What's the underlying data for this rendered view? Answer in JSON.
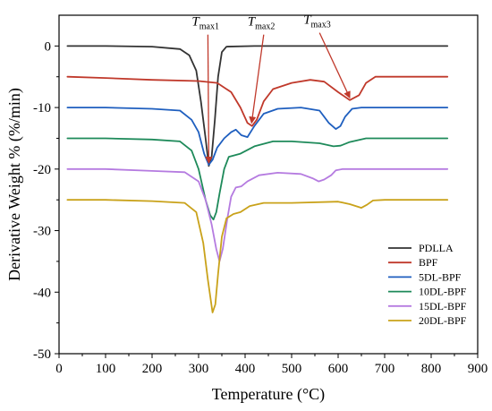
{
  "chart_data": {
    "type": "line",
    "xlabel": "Temperature (°C)",
    "ylabel": "Derivative Weight % (%/min)",
    "xlim": [
      0,
      900
    ],
    "ylim": [
      -50,
      5
    ],
    "xticks": [
      0,
      100,
      200,
      300,
      400,
      500,
      600,
      700,
      800,
      900
    ],
    "yticks": [
      0,
      -10,
      -20,
      -30,
      -40,
      -50
    ],
    "grid": false,
    "legend_position": "bottom-right",
    "series": [
      {
        "name": "PDLLA",
        "color": "#333333",
        "points": [
          [
            18,
            0
          ],
          [
            100,
            0
          ],
          [
            200,
            -0.1
          ],
          [
            260,
            -0.5
          ],
          [
            280,
            -1.5
          ],
          [
            295,
            -4
          ],
          [
            305,
            -9
          ],
          [
            315,
            -15
          ],
          [
            322,
            -19.5
          ],
          [
            328,
            -18
          ],
          [
            335,
            -12
          ],
          [
            342,
            -5
          ],
          [
            350,
            -1
          ],
          [
            360,
            -0.1
          ],
          [
            420,
            0
          ],
          [
            600,
            0
          ],
          [
            835,
            0
          ]
        ]
      },
      {
        "name": "BPF",
        "color": "#c0392b",
        "points": [
          [
            18,
            -5
          ],
          [
            100,
            -5.2
          ],
          [
            200,
            -5.5
          ],
          [
            300,
            -5.7
          ],
          [
            340,
            -6
          ],
          [
            370,
            -7.5
          ],
          [
            390,
            -10
          ],
          [
            405,
            -12.5
          ],
          [
            415,
            -13
          ],
          [
            425,
            -12
          ],
          [
            440,
            -9
          ],
          [
            460,
            -7
          ],
          [
            500,
            -6
          ],
          [
            540,
            -5.5
          ],
          [
            570,
            -5.8
          ],
          [
            600,
            -7.5
          ],
          [
            625,
            -8.8
          ],
          [
            645,
            -8
          ],
          [
            660,
            -6
          ],
          [
            680,
            -5
          ],
          [
            835,
            -5
          ]
        ]
      },
      {
        "name": "5DL-BPF",
        "color": "#1f5fbf",
        "points": [
          [
            18,
            -10
          ],
          [
            100,
            -10
          ],
          [
            200,
            -10.2
          ],
          [
            260,
            -10.5
          ],
          [
            285,
            -12
          ],
          [
            300,
            -14
          ],
          [
            312,
            -17.5
          ],
          [
            322,
            -19.3
          ],
          [
            330,
            -18.5
          ],
          [
            340,
            -16.5
          ],
          [
            355,
            -15
          ],
          [
            370,
            -14
          ],
          [
            380,
            -13.6
          ],
          [
            392,
            -14.5
          ],
          [
            405,
            -14.8
          ],
          [
            420,
            -13
          ],
          [
            440,
            -11
          ],
          [
            470,
            -10.2
          ],
          [
            520,
            -10
          ],
          [
            560,
            -10.5
          ],
          [
            580,
            -12.5
          ],
          [
            595,
            -13.5
          ],
          [
            605,
            -13
          ],
          [
            615,
            -11.5
          ],
          [
            630,
            -10.2
          ],
          [
            650,
            -10
          ],
          [
            835,
            -10
          ]
        ]
      },
      {
        "name": "10DL-BPF",
        "color": "#1e8a5a",
        "points": [
          [
            18,
            -15
          ],
          [
            100,
            -15
          ],
          [
            200,
            -15.2
          ],
          [
            260,
            -15.5
          ],
          [
            285,
            -17
          ],
          [
            300,
            -20
          ],
          [
            315,
            -25
          ],
          [
            325,
            -27.5
          ],
          [
            332,
            -28.2
          ],
          [
            338,
            -27
          ],
          [
            345,
            -24
          ],
          [
            355,
            -20
          ],
          [
            365,
            -18
          ],
          [
            375,
            -17.8
          ],
          [
            390,
            -17.5
          ],
          [
            420,
            -16.3
          ],
          [
            460,
            -15.5
          ],
          [
            500,
            -15.5
          ],
          [
            560,
            -15.8
          ],
          [
            590,
            -16.3
          ],
          [
            605,
            -16.2
          ],
          [
            625,
            -15.6
          ],
          [
            660,
            -15
          ],
          [
            835,
            -15
          ]
        ]
      },
      {
        "name": "15DL-BPF",
        "color": "#b57be0",
        "points": [
          [
            18,
            -20
          ],
          [
            100,
            -20
          ],
          [
            200,
            -20.3
          ],
          [
            270,
            -20.5
          ],
          [
            300,
            -22
          ],
          [
            315,
            -25
          ],
          [
            328,
            -29
          ],
          [
            338,
            -33
          ],
          [
            345,
            -35
          ],
          [
            352,
            -33
          ],
          [
            362,
            -28
          ],
          [
            370,
            -24.5
          ],
          [
            380,
            -23
          ],
          [
            392,
            -22.8
          ],
          [
            405,
            -22
          ],
          [
            430,
            -21
          ],
          [
            470,
            -20.6
          ],
          [
            520,
            -20.8
          ],
          [
            545,
            -21.5
          ],
          [
            558,
            -22
          ],
          [
            570,
            -21.7
          ],
          [
            585,
            -21
          ],
          [
            595,
            -20.2
          ],
          [
            610,
            -20
          ],
          [
            835,
            -20
          ]
        ]
      },
      {
        "name": "20DL-BPF",
        "color": "#c9a21a",
        "points": [
          [
            18,
            -25
          ],
          [
            100,
            -25
          ],
          [
            200,
            -25.2
          ],
          [
            270,
            -25.5
          ],
          [
            295,
            -27
          ],
          [
            310,
            -32
          ],
          [
            320,
            -38
          ],
          [
            330,
            -43.3
          ],
          [
            336,
            -42
          ],
          [
            342,
            -37
          ],
          [
            350,
            -31
          ],
          [
            360,
            -28
          ],
          [
            375,
            -27.3
          ],
          [
            390,
            -27
          ],
          [
            410,
            -26
          ],
          [
            440,
            -25.5
          ],
          [
            500,
            -25.5
          ],
          [
            600,
            -25.3
          ],
          [
            625,
            -25.7
          ],
          [
            650,
            -26.3
          ],
          [
            662,
            -25.8
          ],
          [
            675,
            -25.1
          ],
          [
            700,
            -25
          ],
          [
            835,
            -25
          ]
        ]
      }
    ],
    "annotations": [
      {
        "label": "T",
        "subscript": "max1",
        "text_at": [
          320,
          3.3
        ],
        "arrow_to": [
          322,
          -19.3
        ]
      },
      {
        "label": "T",
        "subscript": "max2",
        "text_at": [
          440,
          3.3
        ],
        "arrow_to": [
          414,
          -12.8
        ]
      },
      {
        "label": "T",
        "subscript": "max3",
        "text_at": [
          560,
          3.6
        ],
        "arrow_to": [
          625,
          -8.7
        ]
      }
    ]
  }
}
